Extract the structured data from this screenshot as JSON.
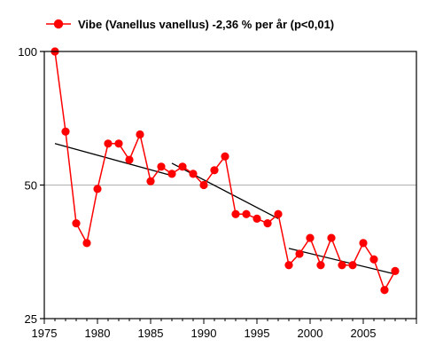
{
  "chart_data": {
    "type": "line",
    "legend": {
      "label": "Vibe (Vanellus vanellus) -2,36 % per år (p<0,01)",
      "placement": "top",
      "marker_color": "#ff0000"
    },
    "x": [
      1976,
      1977,
      1978,
      1979,
      1980,
      1981,
      1982,
      1983,
      1984,
      1985,
      1986,
      1987,
      1988,
      1989,
      1990,
      1991,
      1992,
      1993,
      1994,
      1995,
      1996,
      1997,
      1998,
      1999,
      2000,
      2001,
      2002,
      2003,
      2004,
      2005,
      2006,
      2007,
      2008
    ],
    "series": [
      {
        "values": [
          100,
          66,
          41,
          37,
          49,
          62,
          62,
          57,
          65,
          51,
          55,
          53,
          55,
          53,
          50,
          54,
          58,
          43,
          43,
          42,
          41,
          43,
          33,
          35,
          38,
          33,
          38,
          33,
          33,
          37,
          34,
          29,
          32
        ],
        "color": "#ff0000",
        "line_color": "#ff0000"
      }
    ],
    "trend_lines": [
      {
        "x": [
          1976,
          1987
        ],
        "y": [
          62,
          52.5
        ],
        "color": "#000000"
      },
      {
        "x": [
          1987,
          1997
        ],
        "y": [
          56,
          42
        ],
        "color": "#000000"
      },
      {
        "x": [
          1998,
          2008
        ],
        "y": [
          36,
          31.5
        ],
        "color": "#000000"
      }
    ],
    "x_axis": {
      "range": [
        1975,
        2010
      ],
      "ticks": [
        1975,
        1980,
        1985,
        1990,
        1995,
        2000,
        2005
      ],
      "tick_labels": [
        "1975",
        "1980",
        "1985",
        "1990",
        "1995",
        "2000",
        "2005"
      ]
    },
    "y_axis": {
      "scale": "log",
      "range": [
        25,
        100
      ],
      "ticks": [
        25,
        50,
        100
      ],
      "tick_labels": [
        "25",
        "50",
        "100"
      ]
    },
    "grid": {
      "horizontal_at": [
        50
      ],
      "color": "#b0b0b0"
    },
    "colors": {
      "frame": "#000000",
      "background": "#ffffff"
    }
  }
}
